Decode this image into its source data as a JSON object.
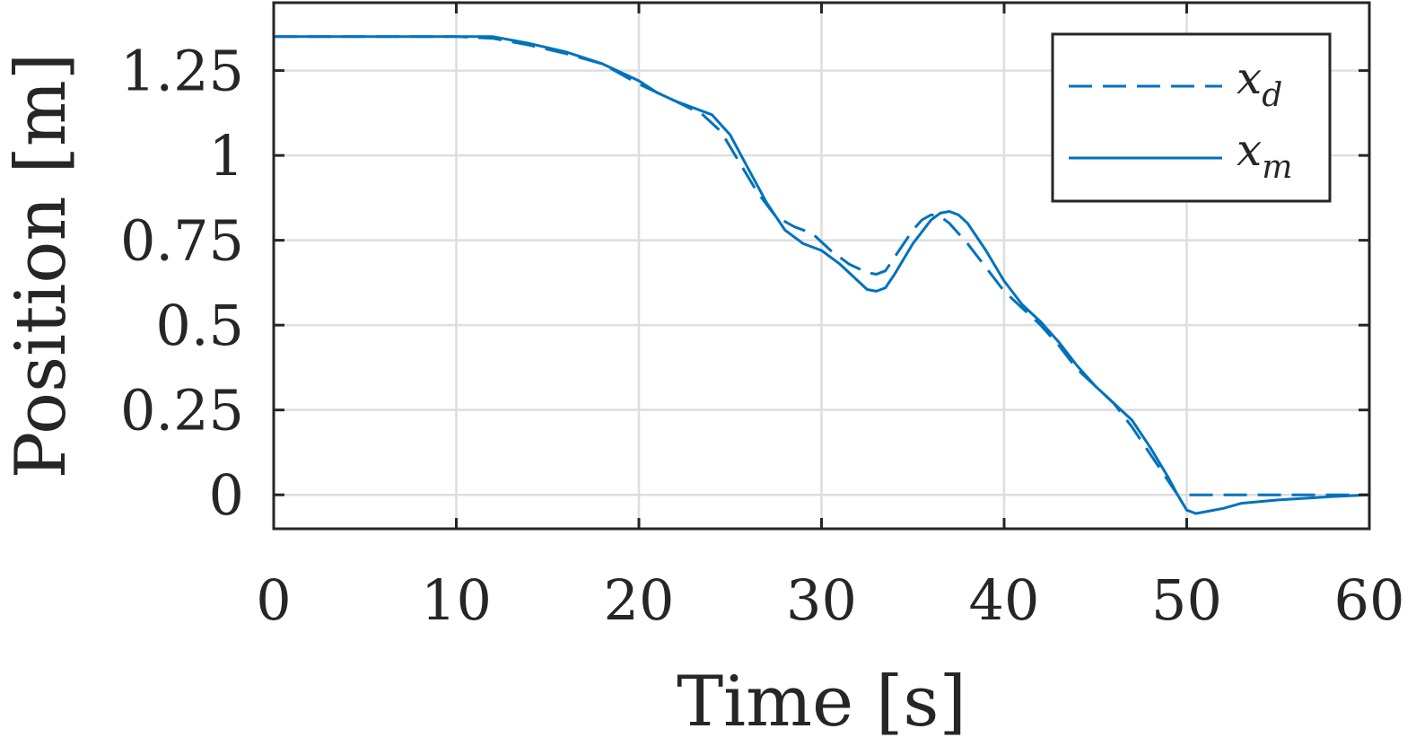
{
  "chart_data": {
    "type": "line",
    "title": "",
    "xlabel": "Time [s]",
    "ylabel": "Position [m]",
    "xlim": [
      0,
      60
    ],
    "ylim": [
      -0.1,
      1.45
    ],
    "xticks": [
      0,
      10,
      20,
      30,
      40,
      50,
      60
    ],
    "xtick_labels": [
      "0",
      "10",
      "20",
      "30",
      "40",
      "50",
      "60"
    ],
    "yticks": [
      0,
      0.25,
      0.5,
      0.75,
      1,
      1.25
    ],
    "ytick_labels": [
      "0",
      "0.25",
      "0.5",
      "0.75",
      "1",
      "1.25"
    ],
    "grid": true,
    "legend_position": "top-right",
    "series": [
      {
        "name": "x",
        "subscript": "d",
        "style": "dashed",
        "color": "#0072BD",
        "x": [
          0,
          5,
          10,
          12,
          14,
          16,
          18,
          20,
          22,
          23.5,
          24.5,
          25.5,
          26.5,
          27.5,
          28.5,
          29.5,
          30.5,
          31.5,
          32.5,
          33,
          33.5,
          34,
          34.5,
          35,
          35.5,
          36,
          36.5,
          37,
          38,
          39,
          40,
          41,
          42,
          43,
          44,
          45,
          46,
          47,
          48,
          49,
          49.5,
          50,
          52,
          55,
          58,
          60
        ],
        "y": [
          1.35,
          1.35,
          1.35,
          1.345,
          1.325,
          1.3,
          1.27,
          1.21,
          1.16,
          1.12,
          1.07,
          0.98,
          0.89,
          0.82,
          0.79,
          0.77,
          0.72,
          0.68,
          0.655,
          0.65,
          0.66,
          0.7,
          0.74,
          0.78,
          0.81,
          0.825,
          0.82,
          0.8,
          0.74,
          0.67,
          0.6,
          0.55,
          0.5,
          0.44,
          0.37,
          0.32,
          0.27,
          0.2,
          0.12,
          0.04,
          0.0,
          0.0,
          0.0,
          0.0,
          0.0,
          0.0
        ]
      },
      {
        "name": "x",
        "subscript": "m",
        "style": "solid",
        "color": "#0072BD",
        "x": [
          0,
          5,
          10,
          12,
          14,
          16,
          18,
          20,
          21,
          22,
          23,
          24,
          25,
          26,
          27,
          28,
          29,
          30,
          31,
          32,
          32.5,
          33,
          33.5,
          34,
          35,
          36,
          36.5,
          37,
          37.5,
          38,
          39,
          40,
          41,
          42,
          43,
          44,
          45,
          46,
          47,
          48,
          49,
          49.5,
          50,
          50.5,
          51,
          52,
          53,
          55,
          58,
          60
        ],
        "y": [
          1.35,
          1.35,
          1.35,
          1.35,
          1.33,
          1.305,
          1.27,
          1.22,
          1.185,
          1.16,
          1.14,
          1.12,
          1.06,
          0.96,
          0.86,
          0.78,
          0.74,
          0.72,
          0.68,
          0.63,
          0.605,
          0.6,
          0.61,
          0.65,
          0.74,
          0.81,
          0.83,
          0.835,
          0.825,
          0.8,
          0.72,
          0.63,
          0.56,
          0.51,
          0.45,
          0.38,
          0.32,
          0.27,
          0.22,
          0.14,
          0.05,
          0.0,
          -0.045,
          -0.055,
          -0.05,
          -0.04,
          -0.025,
          -0.015,
          -0.005,
          0.0
        ]
      }
    ]
  }
}
